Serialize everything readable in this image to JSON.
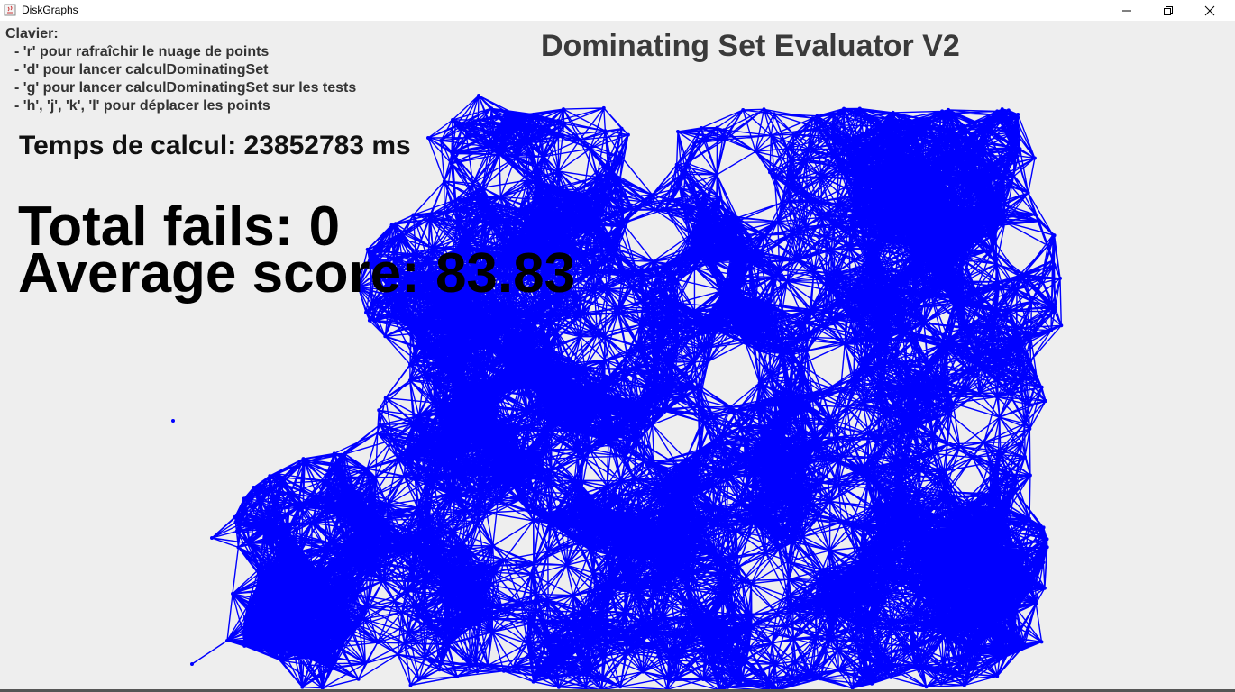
{
  "window": {
    "title": "DiskGraphs",
    "controls": {
      "minimize": "—",
      "maximize": "❐",
      "close": "✕"
    }
  },
  "overlay": {
    "clavier_title": "Clavier:",
    "help_lines": [
      "- 'r' pour rafraîchir le nuage de points",
      "- 'd' pour lancer calculDominatingSet",
      "- 'g' pour lancer calculDominatingSet sur les tests",
      "- 'h', 'j', 'k', 'l' pour déplacer les points"
    ],
    "title": "Dominating Set Evaluator V2",
    "time": "Temps de calcul: 23852783 ms",
    "fails": "Total fails: 0",
    "score": "Average score: 83.83"
  },
  "graph": {
    "edge_color": "#0000ff",
    "node_color": "#0000ff"
  }
}
